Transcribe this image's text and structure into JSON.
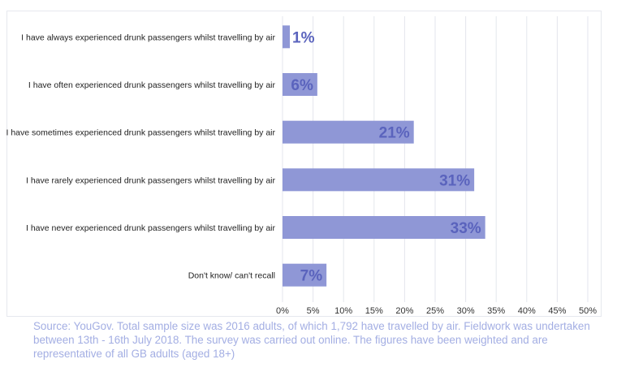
{
  "chart_data": {
    "type": "bar",
    "orientation": "horizontal",
    "categories": [
      "I have always experienced drunk passengers whilst travelling by air",
      "I have often experienced drunk passengers whilst travelling by air",
      "I have sometimes experienced drunk passengers whilst travelling by air",
      "I have rarely experienced drunk passengers whilst travelling by air",
      "I have never experienced drunk passengers whilst travelling by air",
      "Don't know/ can't recall"
    ],
    "values": [
      1.2,
      5.7,
      21.5,
      31.4,
      33.2,
      7.2
    ],
    "data_labels": [
      "1%",
      "6%",
      "21%",
      "31%",
      "33%",
      "7%"
    ],
    "xlim": [
      0,
      50
    ],
    "xticks": [
      "0%",
      "5%",
      "10%",
      "15%",
      "20%",
      "25%",
      "30%",
      "35%",
      "40%",
      "45%",
      "50%"
    ],
    "grid": true,
    "bar_color": "#8f97d6",
    "label_color": "#5a63bd"
  },
  "source": "Source: YouGov. Total sample size was 2016 adults, of which 1,792 have travelled by air. Fieldwork was undertaken between 13th - 16th July 2018. The survey was carried out online. The figures have been weighted and are representative of all GB adults (aged 18+)"
}
